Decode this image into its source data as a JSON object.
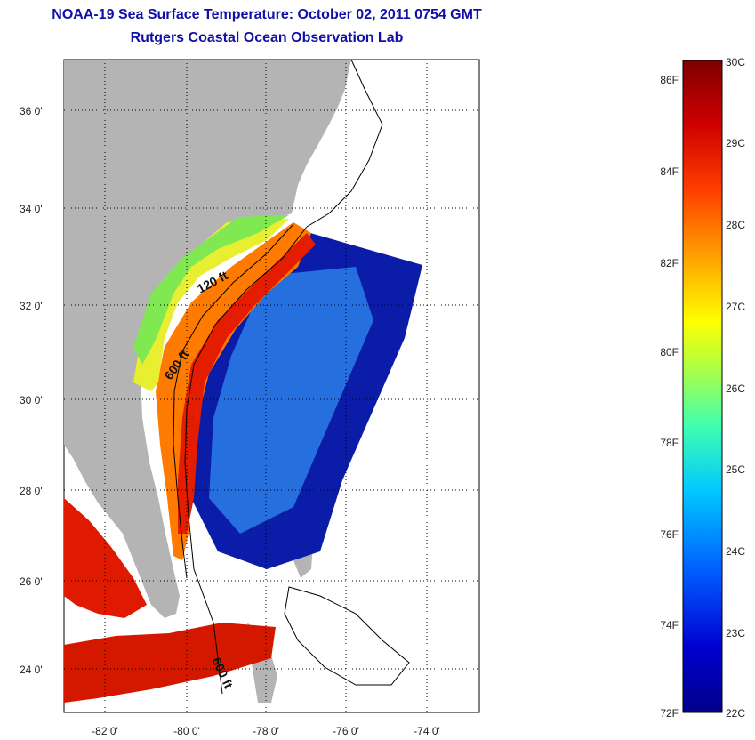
{
  "header": {
    "title": "NOAA-19 Sea Surface Temperature:  October 02, 2011 0754 GMT",
    "subtitle": "Rutgers Coastal Ocean Observation Lab"
  },
  "map": {
    "lat_labels": [
      "36 0'",
      "34 0'",
      "32 0'",
      "30 0'",
      "28 0'",
      "26 0'",
      "24 0'"
    ],
    "lon_labels": [
      "-82 0'",
      "-80 0'",
      "-78 0'",
      "-76 0'",
      "-74 0'"
    ],
    "contour_labels": [
      "120 ft",
      "600 ft",
      "600 ft"
    ],
    "colors": {
      "land": "#b4b4b4",
      "no_data": "#ffffff"
    }
  },
  "colorbar": {
    "fahrenheit_labels": [
      "86F",
      "84F",
      "82F",
      "80F",
      "78F",
      "76F",
      "74F",
      "72F"
    ],
    "celsius_labels": [
      "30C",
      "29C",
      "28C",
      "27C",
      "26C",
      "25C",
      "24C",
      "23C",
      "22C"
    ],
    "colors": [
      "#7f0000",
      "#c80000",
      "#ff2000",
      "#ff8000",
      "#ffd000",
      "#e8ff10",
      "#80ff60",
      "#20e0d0",
      "#00a0ff",
      "#0040ff",
      "#0000c0",
      "#00008a"
    ]
  }
}
